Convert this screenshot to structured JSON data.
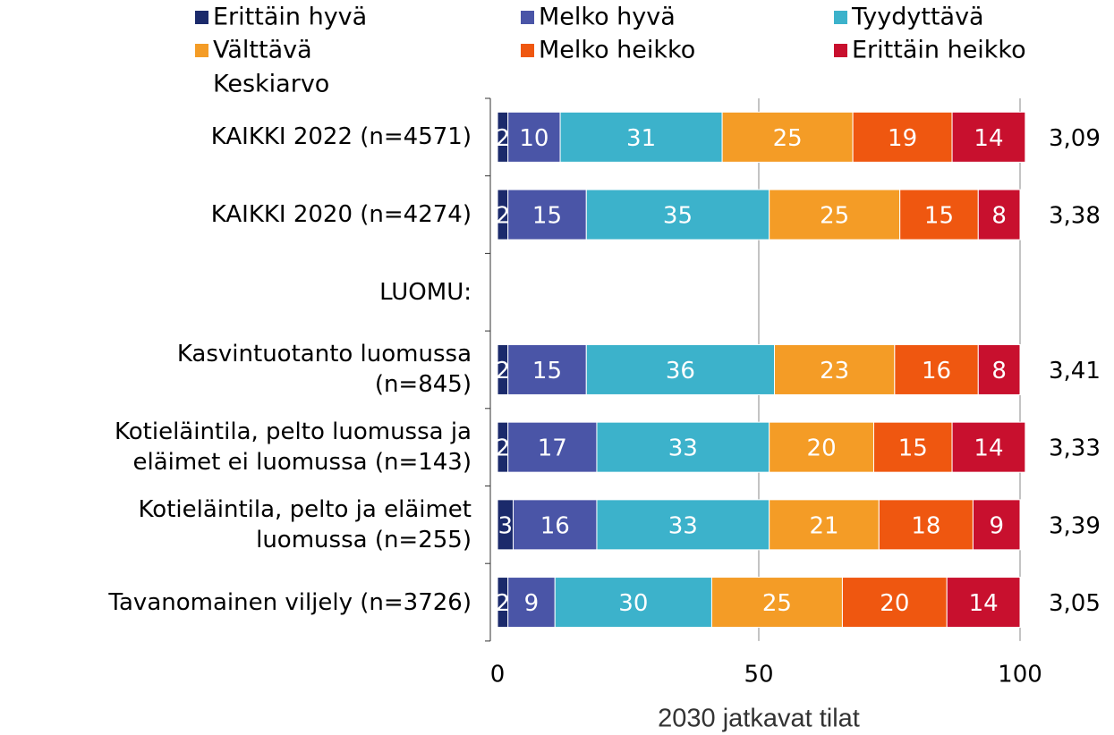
{
  "chart_data": {
    "type": "stacked_bar_horizontal",
    "categories": [
      "KAIKKI 2022 (n=4571)",
      "KAIKKI 2020 (n=4274)",
      "LUOMU:",
      "Kasvintuotanto luomussa\n(n=845)",
      "Kotieläintila, pelto luomussa ja\neläimet ei luomussa (n=143)",
      "Kotieläintila, pelto ja eläimet\nluomussa (n=255)",
      "Tavanomainen viljely (n=3726)"
    ],
    "series": [
      {
        "name": "Erittäin hyvä",
        "color": "#1b2a6b",
        "values": [
          2,
          2,
          null,
          2,
          2,
          3,
          2
        ]
      },
      {
        "name": "Melko hyvä",
        "color": "#4a55a7",
        "values": [
          10,
          15,
          null,
          15,
          17,
          16,
          9
        ]
      },
      {
        "name": "Tyydyttävä",
        "color": "#3cb2cb",
        "values": [
          31,
          35,
          null,
          36,
          33,
          33,
          30
        ]
      },
      {
        "name": "Välttävä",
        "color": "#f49c26",
        "values": [
          25,
          25,
          null,
          23,
          20,
          21,
          25
        ]
      },
      {
        "name": "Melko heikko",
        "color": "#ef5710",
        "values": [
          19,
          15,
          null,
          16,
          15,
          18,
          20
        ]
      },
      {
        "name": "Erittäin heikko",
        "color": "#c8102e",
        "values": [
          14,
          8,
          null,
          8,
          14,
          9,
          14
        ]
      }
    ],
    "average": {
      "name": "Keskiarvo",
      "values": [
        3.09,
        3.38,
        null,
        3.41,
        3.33,
        3.39,
        3.05
      ],
      "value_labels": [
        "3,09",
        "3,38",
        null,
        "3,41",
        "3,33",
        "3,39",
        "3,05"
      ]
    },
    "xlabel": "2030 jatkavat tilat",
    "xlim": [
      0,
      100
    ],
    "xticks": [
      0,
      50,
      100
    ],
    "grid": true
  }
}
